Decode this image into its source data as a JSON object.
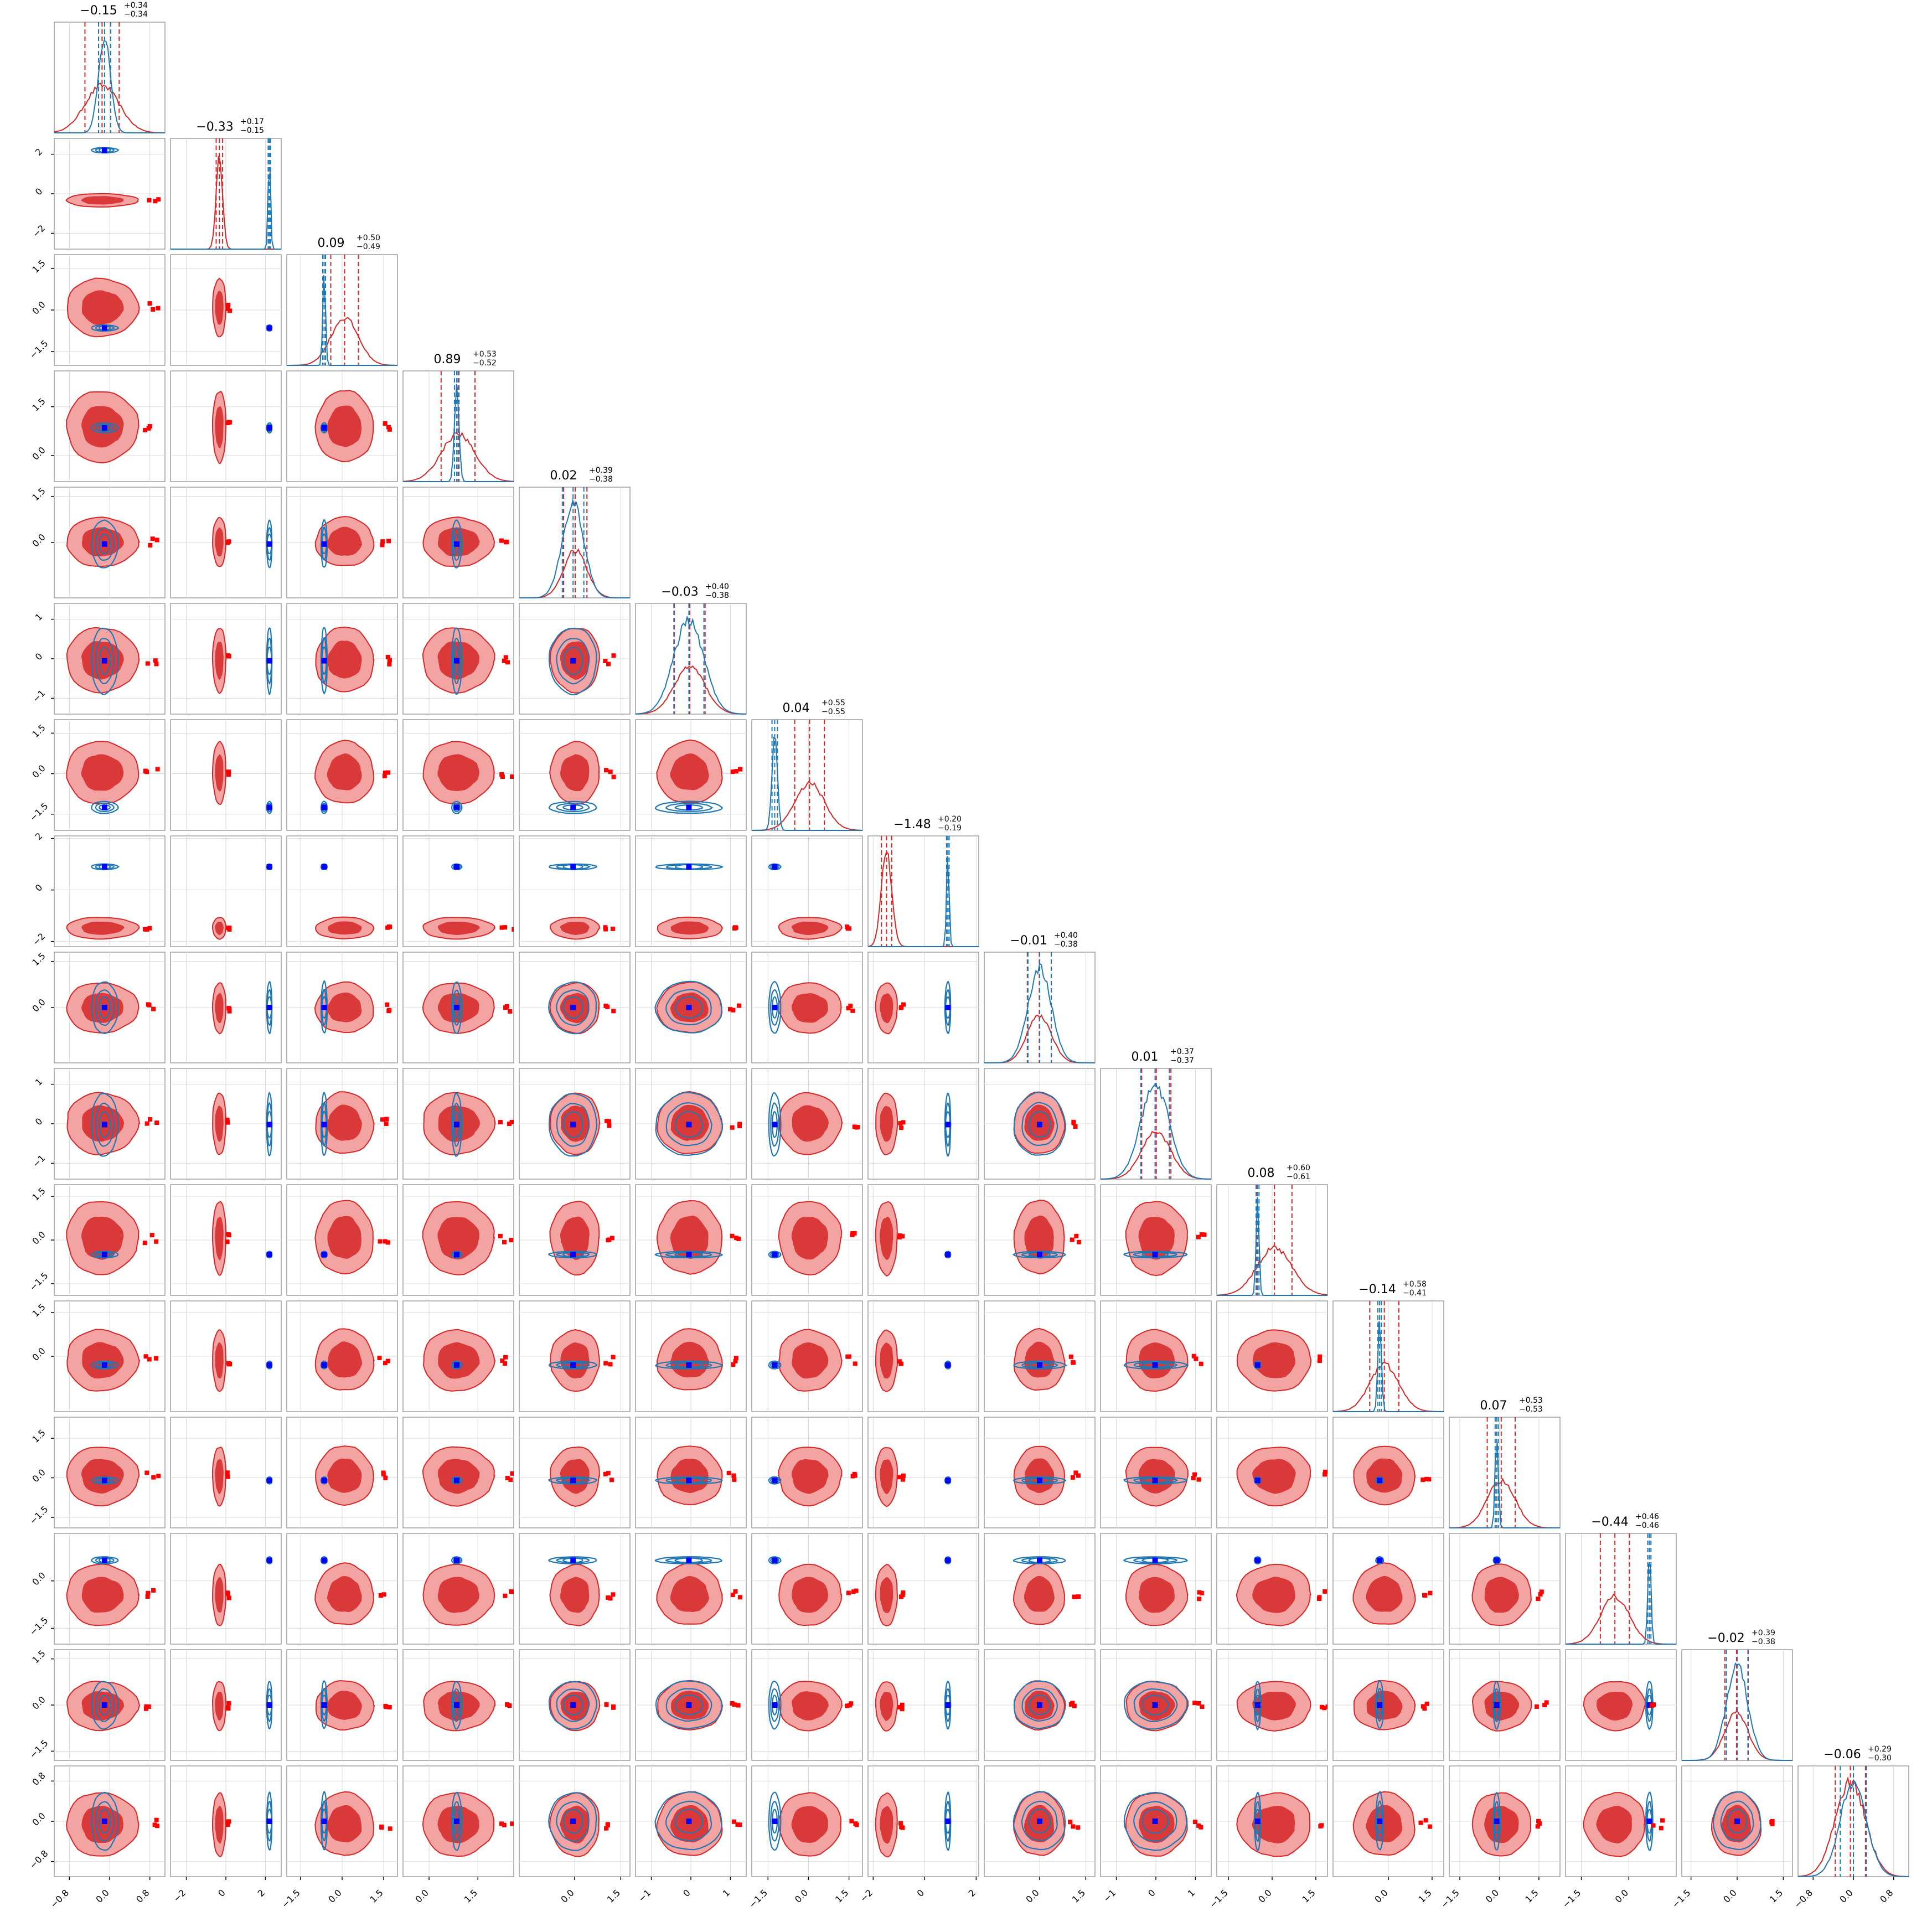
{
  "chart_data": {
    "type": "corner",
    "n_params": 16,
    "titles": [
      {
        "median": "−0.15",
        "plus": "+0.34",
        "minus": "−0.34"
      },
      {
        "median": "−0.33",
        "plus": "+0.17",
        "minus": "−0.15"
      },
      {
        "median": "0.09",
        "plus": "+0.50",
        "minus": "−0.49"
      },
      {
        "median": "0.89",
        "plus": "+0.53",
        "minus": "−0.52"
      },
      {
        "median": "0.02",
        "plus": "+0.39",
        "minus": "−0.38"
      },
      {
        "median": "−0.03",
        "plus": "+0.40",
        "minus": "−0.38"
      },
      {
        "median": "0.04",
        "plus": "+0.55",
        "minus": "−0.55"
      },
      {
        "median": "−1.48",
        "plus": "+0.20",
        "minus": "−0.19"
      },
      {
        "median": "−0.01",
        "plus": "+0.40",
        "minus": "−0.38"
      },
      {
        "median": "0.01",
        "plus": "+0.37",
        "minus": "−0.37"
      },
      {
        "median": "0.08",
        "plus": "+0.60",
        "minus": "−0.61"
      },
      {
        "median": "−0.14",
        "plus": "+0.58",
        "minus": "−0.41"
      },
      {
        "median": "0.07",
        "plus": "+0.53",
        "minus": "−0.53"
      },
      {
        "median": "−0.44",
        "plus": "+0.46",
        "minus": "−0.46"
      },
      {
        "median": "−0.02",
        "plus": "+0.39",
        "minus": "−0.38"
      },
      {
        "median": "−0.06",
        "plus": "+0.29",
        "minus": "−0.30"
      }
    ],
    "ranges": [
      [
        -1.1,
        1.1
      ],
      [
        -2.8,
        2.8
      ],
      [
        -2.0,
        2.0
      ],
      [
        -0.8,
        2.6
      ],
      [
        -1.8,
        1.8
      ],
      [
        -1.4,
        1.4
      ],
      [
        -2.1,
        2.0
      ],
      [
        -2.2,
        2.1
      ],
      [
        -1.8,
        1.8
      ],
      [
        -1.4,
        1.4
      ],
      [
        -1.9,
        1.9
      ],
      [
        -1.9,
        1.9
      ],
      [
        -1.9,
        2.3
      ],
      [
        -2.0,
        1.5
      ],
      [
        -1.8,
        1.8
      ],
      [
        -1.1,
        1.1
      ]
    ],
    "red": {
      "color": "#d62728",
      "means": [
        -0.15,
        -0.33,
        0.09,
        0.89,
        0.02,
        -0.03,
        0.04,
        -1.48,
        -0.01,
        0.01,
        0.08,
        -0.14,
        0.07,
        -0.44,
        -0.02,
        -0.06
      ],
      "sigmas": [
        0.34,
        0.16,
        0.5,
        0.52,
        0.38,
        0.39,
        0.55,
        0.2,
        0.39,
        0.37,
        0.6,
        0.5,
        0.53,
        0.46,
        0.38,
        0.3
      ]
    },
    "blue": {
      "color": "#1f77b4",
      "means": [
        -0.1,
        2.2,
        -0.65,
        0.85,
        -0.05,
        -0.05,
        -1.25,
        0.9,
        0.0,
        -0.02,
        -0.5,
        -0.3,
        -0.1,
        0.65,
        0.0,
        0.0
      ],
      "sigmas": [
        0.12,
        0.06,
        0.05,
        0.07,
        0.35,
        0.38,
        0.1,
        0.05,
        0.38,
        0.36,
        0.05,
        0.06,
        0.06,
        0.05,
        0.35,
        0.26
      ]
    },
    "truth_color": "#0000ff",
    "ticks": [
      {
        "values": [
          -0.8,
          0.0,
          0.8
        ],
        "labels": [
          "−0.8",
          "0.0",
          "0.8"
        ]
      },
      {
        "values": [
          -2,
          0,
          2
        ],
        "labels": [
          "−2",
          "0",
          "2"
        ]
      },
      {
        "values": [
          -1.5,
          0.0,
          1.5
        ],
        "labels": [
          "−1.5",
          "0.0",
          "1.5"
        ]
      },
      {
        "values": [
          0.0,
          1.5
        ],
        "labels": [
          "0.0",
          "1.5"
        ]
      },
      {
        "values": [
          0.0,
          1.5
        ],
        "labels": [
          "0.0",
          "1.5"
        ]
      },
      {
        "values": [
          -1,
          0,
          1
        ],
        "labels": [
          "−1",
          "0",
          "1"
        ]
      },
      {
        "values": [
          -1.5,
          0.0,
          1.5
        ],
        "labels": [
          "−1.5",
          "0.0",
          "1.5"
        ]
      },
      {
        "values": [
          -2,
          0,
          2
        ],
        "labels": [
          "−2",
          "0",
          "2"
        ]
      },
      {
        "values": [
          0.0,
          1.5
        ],
        "labels": [
          "0.0",
          "1.5"
        ]
      },
      {
        "values": [
          -1,
          0,
          1
        ],
        "labels": [
          "−1",
          "0",
          "1"
        ]
      },
      {
        "values": [
          -1.5,
          0.0,
          1.5
        ],
        "labels": [
          "−1.5",
          "0.0",
          "1.5"
        ]
      },
      {
        "values": [
          0.0,
          1.5
        ],
        "labels": [
          "0.0",
          "1.5"
        ]
      },
      {
        "values": [
          -1.5,
          0.0,
          1.5
        ],
        "labels": [
          "−1.5",
          "0.0",
          "1.5"
        ]
      },
      {
        "values": [
          -1.5,
          0.0
        ],
        "labels": [
          "−1.5",
          "0.0"
        ]
      },
      {
        "values": [
          -1.5,
          0.0,
          1.5
        ],
        "labels": [
          "−1.5",
          "0.0",
          "1.5"
        ]
      },
      {
        "values": [
          -0.8,
          0.0,
          0.8
        ],
        "labels": [
          "−0.8",
          "0.0",
          "0.8"
        ]
      }
    ],
    "xlabels": [],
    "ylabels": [],
    "grid": true,
    "legend": false
  }
}
